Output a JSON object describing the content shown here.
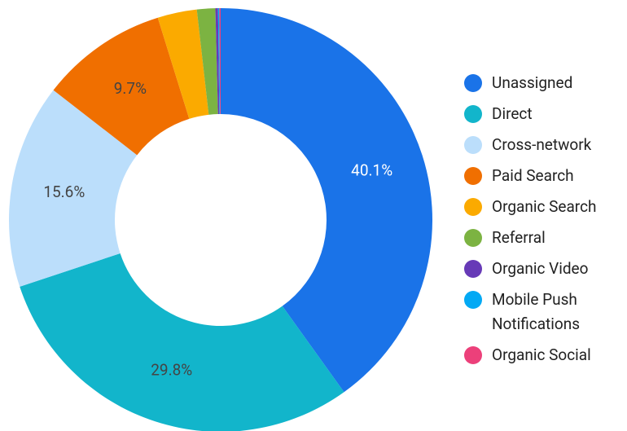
{
  "chart_data": {
    "type": "pie",
    "categories": [
      "Unassigned",
      "Direct",
      "Cross-network",
      "Paid Search",
      "Organic Search",
      "Referral",
      "Organic Video",
      "Mobile Push Notifications",
      "Organic Social"
    ],
    "values": [
      40.1,
      29.8,
      15.6,
      9.7,
      3.0,
      1.4,
      0.2,
      0.1,
      0.1
    ],
    "value_labels": [
      "40.1%",
      "29.8%",
      "15.6%",
      "9.7%",
      null,
      null,
      null,
      null,
      null
    ],
    "colors": [
      "#1a73e8",
      "#12b5cb",
      "#bbdefb",
      "#f06f00",
      "#fbaa00",
      "#7cb342",
      "#673ab7",
      "#03a9f4",
      "#ec407a"
    ],
    "donut": true,
    "legend": "right"
  }
}
